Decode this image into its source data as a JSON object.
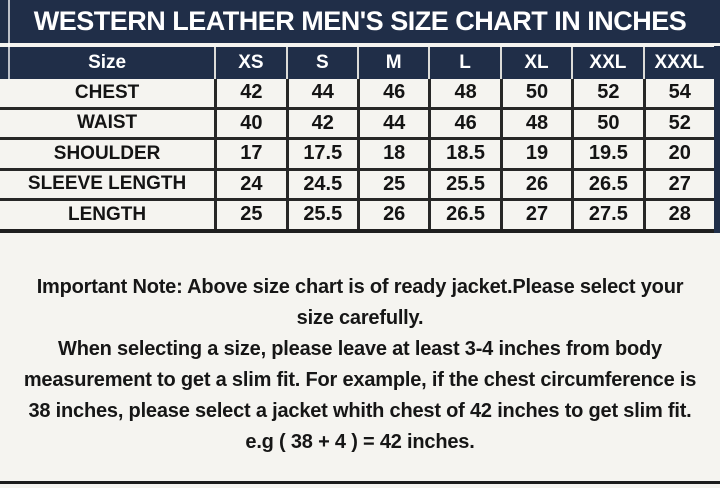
{
  "colors": {
    "navy": "#202e48",
    "page_bg": "#f5f4f0",
    "grid_line": "#272727",
    "text": "#141414"
  },
  "chart_data": {
    "type": "table",
    "title": "WESTERN LEATHER MEN'S SIZE CHART IN INCHES",
    "columns": [
      "Size",
      "XS",
      "S",
      "M",
      "L",
      "XL",
      "XXL",
      "XXXL"
    ],
    "rows": [
      {
        "label": "CHEST",
        "values": [
          "42",
          "44",
          "46",
          "48",
          "50",
          "52",
          "54"
        ]
      },
      {
        "label": "WAIST",
        "values": [
          "40",
          "42",
          "44",
          "46",
          "48",
          "50",
          "52"
        ]
      },
      {
        "label": "SHOULDER",
        "values": [
          "17",
          "17.5",
          "18",
          "18.5",
          "19",
          "19.5",
          "20"
        ]
      },
      {
        "label": "SLEEVE LENGTH",
        "values": [
          "24",
          "24.5",
          "25",
          "25.5",
          "26",
          "26.5",
          "27"
        ]
      },
      {
        "label": "LENGTH",
        "values": [
          "25",
          "25.5",
          "26",
          "26.5",
          "27",
          "27.5",
          "28"
        ]
      }
    ],
    "units": "inches",
    "legend_position": "none",
    "grid": true
  },
  "notes": {
    "lines": [
      "Important Note: Above size chart is of ready jacket.Please select your",
      "size carefully.",
      "When selecting a size, please leave at least 3-4 inches from body",
      "measurement to get a slim fit. For example, if the chest circumference is",
      "38 inches, please select a jacket whith chest of 42 inches to get slim fit.",
      "e.g ( 38 + 4 ) = 42 inches."
    ]
  }
}
